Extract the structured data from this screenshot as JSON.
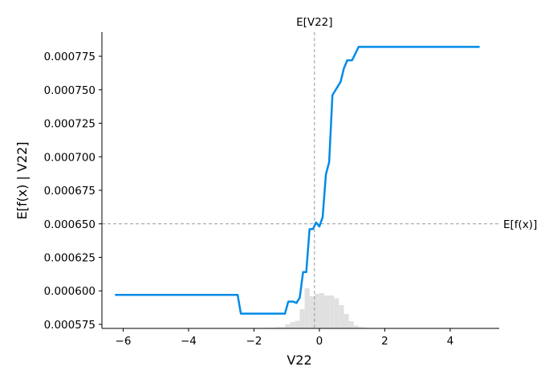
{
  "chart_data": {
    "type": "line",
    "xlabel": "V22",
    "ylabel": "E[f(x) | V22]",
    "xlim": [
      -6.65,
      5.5
    ],
    "ylim": [
      0.000572,
      0.000793
    ],
    "x_ticks": [
      -6,
      -4,
      -2,
      0,
      2,
      4
    ],
    "x_tick_labels": [
      "−6",
      "−4",
      "−2",
      "0",
      "2",
      "4"
    ],
    "y_ticks": [
      0.000575,
      0.0006,
      0.000625,
      0.00065,
      0.000675,
      0.0007,
      0.000725,
      0.00075,
      0.000775
    ],
    "y_tick_labels": [
      "0.000575",
      "0.000600",
      "0.000625",
      "0.000650",
      "0.000675",
      "0.000700",
      "0.000725",
      "0.000750",
      "0.000775"
    ],
    "grid": false,
    "line_color": "#008be6",
    "series": [
      {
        "x": [
          -6.25,
          -2.5,
          -2.4,
          -1.05,
          -0.95,
          -0.8,
          -0.7,
          -0.6,
          -0.5,
          -0.4,
          -0.3,
          -0.2,
          -0.1,
          0.0,
          0.1,
          0.2,
          0.3,
          0.4,
          0.55,
          0.65,
          0.75,
          0.85,
          1.0,
          1.2,
          4.9
        ],
        "y": [
          0.000597,
          0.000597,
          0.000583,
          0.000583,
          0.000592,
          0.000592,
          0.000591,
          0.000595,
          0.000614,
          0.000614,
          0.000646,
          0.000646,
          0.000651,
          0.000648,
          0.000655,
          0.000687,
          0.000696,
          0.000746,
          0.000752,
          0.000756,
          0.000766,
          0.000772,
          0.000772,
          0.000782,
          0.000782
        ]
      }
    ],
    "reference_lines": {
      "vertical": {
        "x": -0.15,
        "label": "E[V22]"
      },
      "horizontal": {
        "y": 0.00065,
        "label": "E[f(x)]"
      }
    },
    "histogram": {
      "bins": [
        -2.25,
        -1.95,
        -1.65,
        -1.35,
        -1.05,
        -0.9,
        -0.75,
        -0.6,
        -0.45,
        -0.3,
        -0.15,
        0.0,
        0.15,
        0.3,
        0.45,
        0.6,
        0.75,
        0.9,
        1.05,
        1.2,
        1.35,
        1.5,
        1.65
      ],
      "heights": [
        0.004,
        0.008,
        0.016,
        0.03,
        0.1,
        0.16,
        0.19,
        0.48,
        1.0,
        0.8,
        0.86,
        0.88,
        0.82,
        0.82,
        0.75,
        0.58,
        0.36,
        0.18,
        0.07,
        0.03,
        0.015,
        0.005
      ]
    }
  }
}
